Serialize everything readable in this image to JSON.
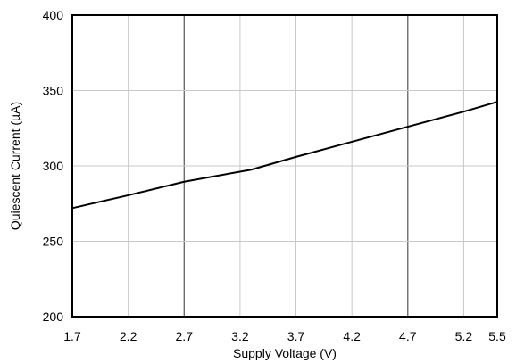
{
  "chart_data": {
    "type": "line",
    "title": "",
    "xlabel": "Supply Voltage (V)",
    "ylabel": "Quiescent Current (µA)",
    "xlim": [
      1.7,
      5.5
    ],
    "ylim": [
      200,
      400
    ],
    "x_ticks": [
      "1.7",
      "2.2",
      "2.7",
      "3.2",
      "3.7",
      "4.2",
      "4.7",
      "5.2",
      "5.5"
    ],
    "x_tick_values": [
      1.7,
      2.2,
      2.7,
      3.2,
      3.7,
      4.2,
      4.7,
      5.2,
      5.5
    ],
    "y_ticks": [
      "200",
      "250",
      "300",
      "350",
      "400"
    ],
    "y_tick_values": [
      200,
      250,
      300,
      350,
      400
    ],
    "grid": true,
    "major_grid_x": [
      2.7,
      4.7
    ],
    "series": [
      {
        "x": [
          1.7,
          2.2,
          2.7,
          3.3,
          3.7,
          4.2,
          4.7,
          5.2,
          5.5
        ],
        "values": [
          272,
          280.5,
          289.5,
          297.5,
          306,
          316,
          326,
          336,
          342.5
        ],
        "color": "#000000"
      }
    ]
  }
}
